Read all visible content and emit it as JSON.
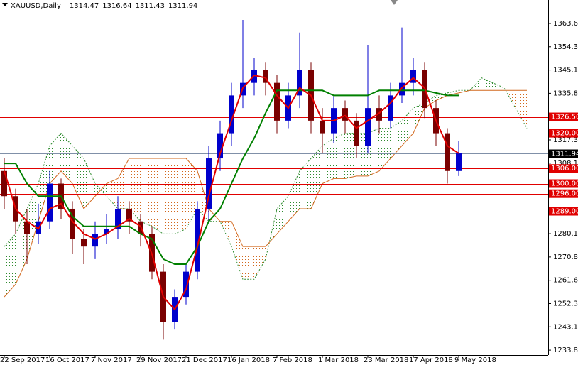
{
  "chart_data": {
    "type": "candlestick",
    "title": "XAUUSD,Daily",
    "ohlc": [
      1314.47,
      1316.64,
      1311.43,
      1311.94
    ],
    "categories": [
      "22 Sep 2017",
      null,
      null,
      null,
      "16 Oct 2017",
      null,
      null,
      null,
      "7 Nov 2017",
      null,
      null,
      null,
      "29 Nov 2017",
      null,
      null,
      null,
      "21 Dec 2017",
      null,
      null,
      null,
      "16 Jan 2018",
      null,
      null,
      null,
      "7 Feb 2018",
      null,
      null,
      null,
      "1 Mar 2018",
      null,
      null,
      null,
      "23 Mar 2018",
      null,
      null,
      null,
      "17 Apr 2018",
      null,
      null,
      null,
      "9 May 2018"
    ],
    "open": [
      1305,
      1295,
      1285,
      1280,
      1285,
      1300,
      1290,
      1278,
      1275,
      1280,
      1282,
      1290,
      1285,
      1280,
      1265,
      1245,
      1255,
      1265,
      1290,
      1310,
      1320,
      1335,
      1340,
      1345,
      1340,
      1325,
      1335,
      1345,
      1325,
      1320,
      1330,
      1325,
      1315,
      1330,
      1325,
      1335,
      1340,
      1345,
      1330,
      1320,
      1305
    ],
    "high": [
      1310,
      1298,
      1290,
      1292,
      1305,
      1302,
      1293,
      1282,
      1285,
      1288,
      1295,
      1293,
      1288,
      1283,
      1268,
      1258,
      1268,
      1293,
      1315,
      1325,
      1340,
      1365,
      1350,
      1348,
      1343,
      1340,
      1360,
      1348,
      1330,
      1335,
      1333,
      1328,
      1355,
      1335,
      1340,
      1362,
      1350,
      1348,
      1333,
      1322,
      1317
    ],
    "low": [
      1290,
      1280,
      1268,
      1276,
      1282,
      1286,
      1272,
      1268,
      1270,
      1276,
      1278,
      1280,
      1275,
      1262,
      1238,
      1242,
      1252,
      1262,
      1285,
      1305,
      1315,
      1330,
      1335,
      1335,
      1320,
      1322,
      1330,
      1320,
      1312,
      1316,
      1320,
      1310,
      1312,
      1320,
      1322,
      1332,
      1335,
      1326,
      1315,
      1300,
      1303
    ],
    "close": [
      1295,
      1285,
      1280,
      1285,
      1300,
      1290,
      1278,
      1275,
      1280,
      1282,
      1290,
      1285,
      1280,
      1265,
      1245,
      1255,
      1265,
      1290,
      1310,
      1320,
      1335,
      1340,
      1345,
      1340,
      1325,
      1335,
      1345,
      1325,
      1320,
      1330,
      1325,
      1315,
      1330,
      1325,
      1335,
      1340,
      1345,
      1330,
      1320,
      1305,
      1312
    ],
    "up_color": "#0000cc",
    "down_color": "#7a0000",
    "tenkan": {
      "color": "#e00000",
      "values": [
        1305,
        1290,
        1285,
        1282,
        1290,
        1292,
        1285,
        1280,
        1278,
        1280,
        1283,
        1286,
        1283,
        1272,
        1255,
        1250,
        1258,
        1275,
        1295,
        1312,
        1325,
        1338,
        1343,
        1342,
        1335,
        1330,
        1338,
        1335,
        1325,
        1325,
        1327,
        1322,
        1325,
        1328,
        1332,
        1338,
        1342,
        1338,
        1325,
        1315,
        1312
      ]
    },
    "kijun": {
      "color": "#008000",
      "values": [
        1308,
        1308,
        1300,
        1295,
        1295,
        1295,
        1287,
        1283,
        1283,
        1283,
        1283,
        1283,
        1280,
        1278,
        1270,
        1268,
        1268,
        1275,
        1285,
        1290,
        1300,
        1310,
        1318,
        1328,
        1337,
        1337,
        1337,
        1337,
        1337,
        1335,
        1335,
        1335,
        1335,
        1337,
        1337,
        1337,
        1337,
        1337,
        1336,
        1335,
        1335
      ]
    },
    "span_a": {
      "color": "#2e8b2e",
      "values": [
        1275,
        1280,
        1290,
        1300,
        1315,
        1320,
        1315,
        1310,
        1300,
        1295,
        1290,
        1290,
        1285,
        1283,
        1280,
        1280,
        1282,
        1290,
        1285,
        1285,
        1275,
        1262,
        1262,
        1270,
        1290,
        1295,
        1305,
        1310,
        1315,
        1318,
        1320,
        1320,
        1320,
        1322,
        1322,
        1325,
        1330,
        1332,
        1335,
        1336,
        1337,
        1337,
        1342,
        1340,
        1338,
        1330,
        1322
      ]
    },
    "span_b": {
      "color": "#d2691e",
      "values": [
        1255,
        1260,
        1270,
        1285,
        1300,
        1305,
        1300,
        1290,
        1295,
        1300,
        1302,
        1310,
        1310,
        1310,
        1310,
        1310,
        1310,
        1305,
        1290,
        1285,
        1285,
        1275,
        1275,
        1275,
        1280,
        1285,
        1290,
        1290,
        1300,
        1302,
        1302,
        1303,
        1303,
        1305,
        1310,
        1315,
        1320,
        1330,
        1333,
        1335,
        1336,
        1337,
        1337,
        1337,
        1337,
        1337,
        1337
      ]
    },
    "levels": [
      {
        "value": 1326.5,
        "label": "1326.50"
      },
      {
        "value": 1320,
        "label": "1320.00"
      },
      {
        "value": 1306,
        "label": "1306.00"
      },
      {
        "value": 1300,
        "label": "1300.00"
      },
      {
        "value": 1296,
        "label": "1296.00"
      },
      {
        "value": 1289,
        "label": "1289.00"
      }
    ],
    "level_color": "#e00000",
    "last": {
      "value": 1311.94,
      "label": "1311.94"
    },
    "ylim": [
      1231.9,
      1372.9
    ],
    "yticks": [
      {
        "value": 1363.6,
        "label": "1363.60"
      },
      {
        "value": 1354.35,
        "label": "1354.35"
      },
      {
        "value": 1345.1,
        "label": "1345.10"
      },
      {
        "value": 1335.85,
        "label": "1335.85"
      },
      {
        "value": 1317.35,
        "label": "1317.35"
      },
      {
        "value": 1308.1,
        "label": "1308.10"
      },
      {
        "value": 1280.1,
        "label": "1280.10"
      },
      {
        "value": 1270.85,
        "label": "1270.85"
      },
      {
        "value": 1261.6,
        "label": "1261.60"
      },
      {
        "value": 1252.35,
        "label": "1252.35"
      },
      {
        "value": 1243.1,
        "label": "1243.10"
      },
      {
        "value": 1233.85,
        "label": "1233.85"
      }
    ]
  }
}
